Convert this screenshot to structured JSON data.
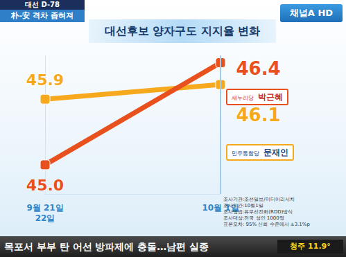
{
  "header": {
    "badge": "대선 D-78",
    "sub": "朴-安 격차 좁혀져",
    "channel": "채널A HD"
  },
  "chart_data": {
    "type": "line",
    "title": "대선후보 양자구도 지지율 변화",
    "categories": [
      "9월 21일\n22일",
      "10월 1일"
    ],
    "series": [
      {
        "name": "박근혜",
        "party": "새누리당",
        "color": "#e8501e",
        "values": [
          45.0,
          46.4
        ],
        "value_labels": [
          "45.0",
          "46.4"
        ]
      },
      {
        "name": "문재인",
        "party": "민주통합당",
        "color": "#f6a91c",
        "values": [
          45.9,
          46.1
        ],
        "value_labels": [
          "45.9",
          "46.1"
        ]
      }
    ],
    "ylim": [
      44.6,
      46.5
    ],
    "tick_labels": "x",
    "grid": false,
    "data_labels": true,
    "marker": "roundRect"
  },
  "notes": [
    "조사기관:조선일보/미디어리서치",
    "조사기간:10월1일",
    "조사방법:유무선전화(RDD)방식",
    "조사대상:전국 성인 1000명",
    "표본오차: 95% 신뢰 수준에서 ±3.1%p"
  ],
  "ticker": "목포서 부부 탄 어선 방파제에 충돌…남편 실종",
  "weather": "청주 11.9°"
}
